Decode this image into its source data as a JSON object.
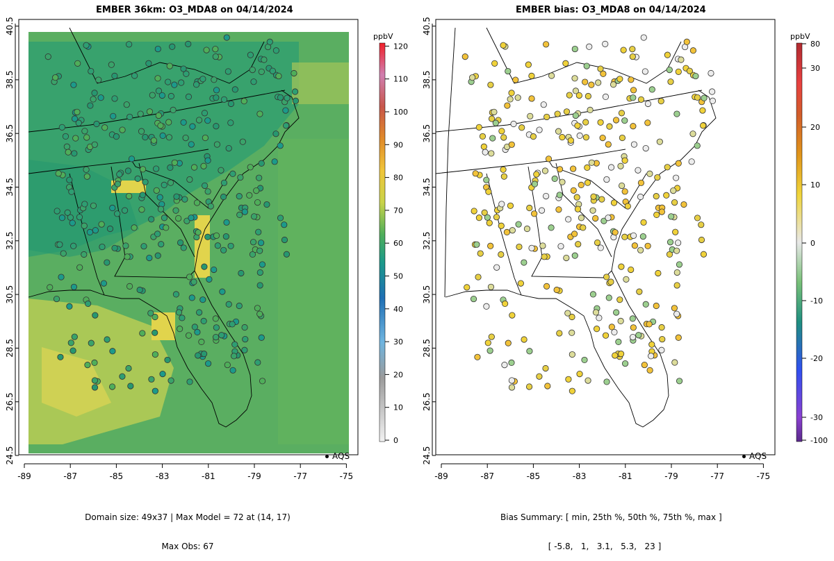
{
  "left_panel": {
    "title": "EMBER 36km: O3_MDA8 on 04/14/2024",
    "units": "ppbV",
    "colorbar_ticks": [
      "0",
      "10",
      "20",
      "30",
      "40",
      "50",
      "60",
      "70",
      "80",
      "90",
      "100",
      "110",
      "120"
    ],
    "legend_label": "AQS",
    "footer_line1": "Domain size: 49x37 | Max Model = 72 at (14, 17)",
    "footer_line2": "Max Obs: 67"
  },
  "right_panel": {
    "title": "EMBER bias: O3_MDA8 on 04/14/2024",
    "units": "ppbV",
    "colorbar_ticks": [
      "-100",
      "-30",
      "-20",
      "-10",
      "0",
      "10",
      "20",
      "30",
      "80"
    ],
    "legend_label": "AQS",
    "footer_line1": "Bias Summary: [ min, 25th %, 50th %, 75th %, max ]",
    "footer_line2": "[ -5.8,   1,   3.1,   5.3,   23 ]"
  },
  "axes": {
    "x_ticks": [
      "-89",
      "-87",
      "-85",
      "-83",
      "-81",
      "-79",
      "-77",
      "-75"
    ],
    "y_ticks": [
      "24.5",
      "26.5",
      "28.5",
      "30.5",
      "32.5",
      "34.5",
      "36.5",
      "38.5",
      "40.5"
    ]
  },
  "colors": {
    "model_green": "#5aae61",
    "model_teal": "#2e9e72",
    "model_yellow": "#d9d24a",
    "bias_yellow": "#f0d23a",
    "bias_white": "#ececec"
  }
}
